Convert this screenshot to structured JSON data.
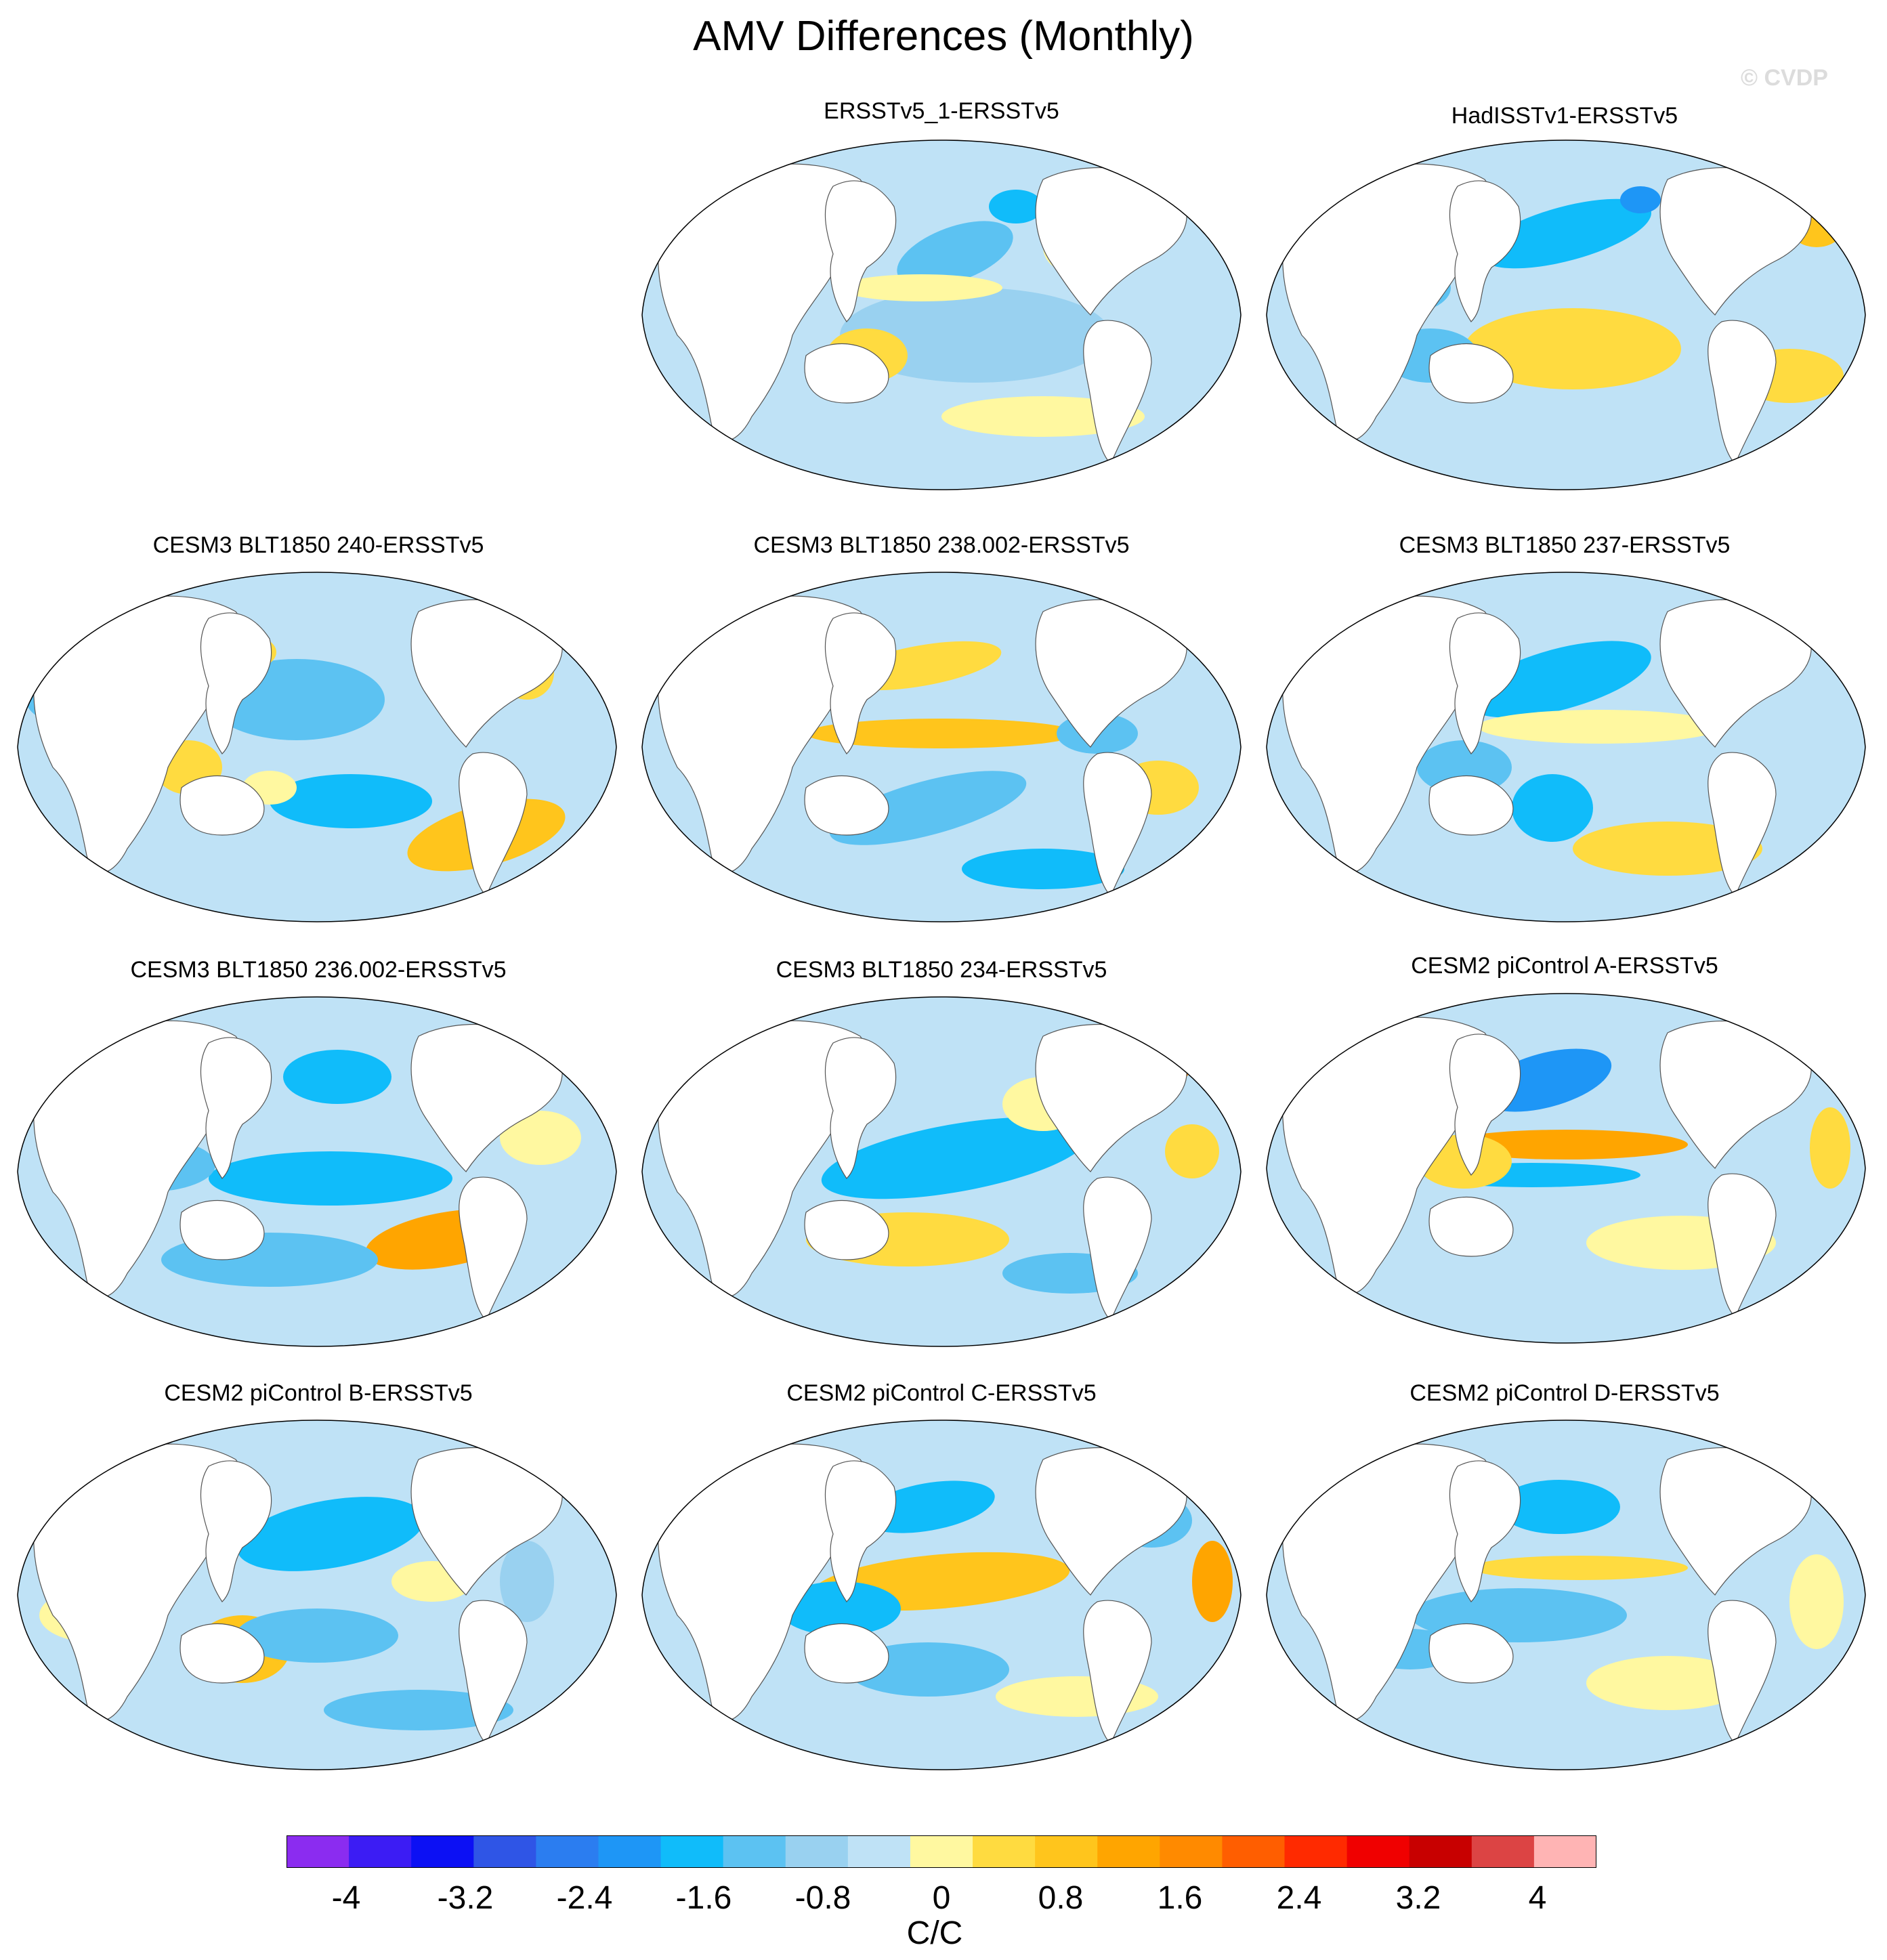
{
  "title": "AMV Differences (Monthly)",
  "watermark": "© CVDP",
  "panels": [
    {
      "title": "ERSSTv5_1-ERSSTv5"
    },
    {
      "title": "HadISSTv1-ERSSTv5"
    },
    {
      "title": "CESM3 BLT1850 240-ERSSTv5"
    },
    {
      "title": "CESM3 BLT1850 238.002-ERSSTv5"
    },
    {
      "title": "CESM3 BLT1850 237-ERSSTv5"
    },
    {
      "title": "CESM3 BLT1850 236.002-ERSSTv5"
    },
    {
      "title": "CESM3 BLT1850 234-ERSSTv5"
    },
    {
      "title": "CESM2 piControl A-ERSSTv5"
    },
    {
      "title": "CESM2 piControl B-ERSSTv5"
    },
    {
      "title": "CESM2 piControl C-ERSSTv5"
    },
    {
      "title": "CESM2 piControl D-ERSSTv5"
    }
  ],
  "colorbar": {
    "units": "C/C",
    "tick_labels": [
      "-4",
      "-3.2",
      "-2.4",
      "-1.6",
      "-0.8",
      "0",
      "0.8",
      "1.6",
      "2.4",
      "3.2",
      "4"
    ],
    "colors": [
      "#8b2cf0",
      "#3c1cf4",
      "#0c10f4",
      "#2f55e6",
      "#2b7df0",
      "#1e96f6",
      "#10bcfa",
      "#5cc2f2",
      "#99d1f0",
      "#bfe2f6",
      "#fff8a0",
      "#ffdb40",
      "#ffc51c",
      "#ffa500",
      "#ff8a00",
      "#ff5e00",
      "#ff2a00",
      "#f00000",
      "#c80000",
      "#dc4444",
      "#ffb4b4"
    ]
  }
}
